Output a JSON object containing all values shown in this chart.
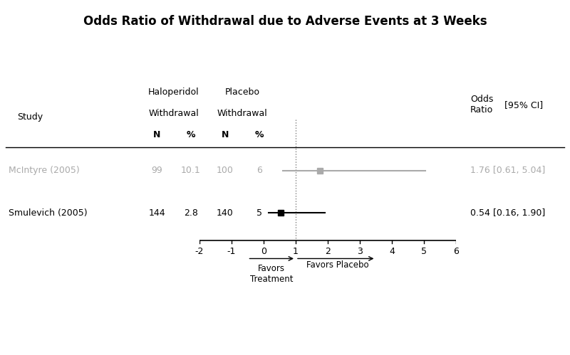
{
  "title": "Odds Ratio of Withdrawal due to Adverse Events at 3 Weeks",
  "studies": [
    {
      "name": "McIntyre (2005)",
      "halo_n": "99",
      "halo_pct": "10.1",
      "placebo_n": "100",
      "placebo_pct": "6",
      "or": 1.76,
      "ci_low": 0.61,
      "ci_high": 5.04,
      "color": "#aaaaaa",
      "y": 1
    },
    {
      "name": "Smulevich (2005)",
      "halo_n": "144",
      "halo_pct": "2.8",
      "placebo_n": "140",
      "placebo_pct": "5",
      "or": 0.54,
      "ci_low": 0.16,
      "ci_high": 1.9,
      "color": "#000000",
      "y": 0
    }
  ],
  "xmin": -2,
  "xmax": 6,
  "xticks": [
    -2,
    -1,
    0,
    1,
    2,
    3,
    4,
    5,
    6
  ],
  "null_line": 1,
  "or_text": [
    "1.76 [0.61, 5.04]",
    "0.54 [0.16, 1.90]"
  ],
  "or_colors": [
    "#aaaaaa",
    "#000000"
  ],
  "fig_col_study": 0.01,
  "fig_col_halo_n": 0.275,
  "fig_col_halo_pct": 0.335,
  "fig_col_placebo_n": 0.395,
  "fig_col_placebo_pct": 0.455,
  "fig_col_or": 0.825,
  "fig_col_ci": 0.885
}
